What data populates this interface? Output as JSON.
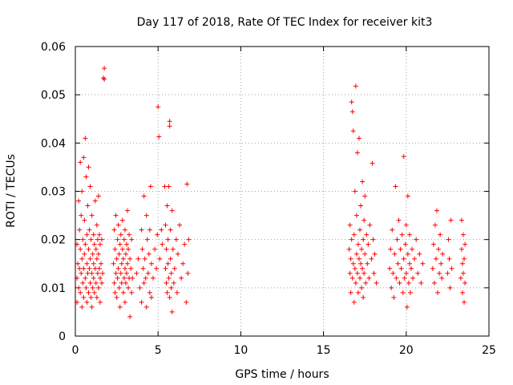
{
  "chart_data": {
    "type": "scatter",
    "title": "Day 117 of 2018, Rate Of TEC Index for receiver kit3",
    "xlabel": "GPS time / hours",
    "ylabel": "ROTI / TECUs",
    "xlim": [
      0,
      25
    ],
    "ylim": [
      0,
      0.06
    ],
    "xticks": [
      0,
      5,
      10,
      15,
      20,
      25
    ],
    "xtick_labels": [
      "0",
      "5",
      "10",
      "15",
      "20",
      "25"
    ],
    "yticks": [
      0,
      0.01,
      0.02,
      0.03,
      0.04,
      0.05,
      0.06
    ],
    "ytick_labels": [
      "0",
      "0.01",
      "0.02",
      "0.03",
      "0.04",
      "0.05",
      "0.06"
    ],
    "grid": true,
    "marker": "+",
    "color": "#ff0000",
    "series": [
      {
        "name": "ROTI",
        "points": [
          [
            0.1,
            0.012
          ],
          [
            0.1,
            0.019
          ],
          [
            0.1,
            0.007
          ],
          [
            0.15,
            0.015
          ],
          [
            0.2,
            0.028
          ],
          [
            0.2,
            0.01
          ],
          [
            0.25,
            0.022
          ],
          [
            0.25,
            0.014
          ],
          [
            0.3,
            0.009
          ],
          [
            0.3,
            0.018
          ],
          [
            0.3,
            0.036
          ],
          [
            0.35,
            0.013
          ],
          [
            0.35,
            0.025
          ],
          [
            0.4,
            0.006
          ],
          [
            0.4,
            0.016
          ],
          [
            0.4,
            0.03
          ],
          [
            0.45,
            0.011
          ],
          [
            0.45,
            0.02
          ],
          [
            0.5,
            0.008
          ],
          [
            0.5,
            0.014
          ],
          [
            0.5,
            0.037
          ],
          [
            0.55,
            0.017
          ],
          [
            0.55,
            0.024
          ],
          [
            0.6,
            0.012
          ],
          [
            0.6,
            0.019
          ],
          [
            0.6,
            0.041
          ],
          [
            0.65,
            0.01
          ],
          [
            0.65,
            0.033
          ],
          [
            0.7,
            0.015
          ],
          [
            0.7,
            0.021
          ],
          [
            0.7,
            0.007
          ],
          [
            0.75,
            0.013
          ],
          [
            0.75,
            0.027
          ],
          [
            0.8,
            0.009
          ],
          [
            0.8,
            0.018
          ],
          [
            0.8,
            0.035
          ],
          [
            0.85,
            0.014
          ],
          [
            0.85,
            0.022
          ],
          [
            0.9,
            0.011
          ],
          [
            0.9,
            0.016
          ],
          [
            0.9,
            0.031
          ],
          [
            0.95,
            0.008
          ],
          [
            0.95,
            0.02
          ],
          [
            1.0,
            0.013
          ],
          [
            1.0,
            0.025
          ],
          [
            1.0,
            0.006
          ],
          [
            1.05,
            0.017
          ],
          [
            1.05,
            0.01
          ],
          [
            1.1,
            0.015
          ],
          [
            1.1,
            0.021
          ],
          [
            1.1,
            0.012
          ],
          [
            1.15,
            0.019
          ],
          [
            1.15,
            0.009
          ],
          [
            1.2,
            0.014
          ],
          [
            1.2,
            0.028
          ],
          [
            1.25,
            0.011
          ],
          [
            1.25,
            0.018
          ],
          [
            1.3,
            0.016
          ],
          [
            1.3,
            0.023
          ],
          [
            1.3,
            0.008
          ],
          [
            1.35,
            0.013
          ],
          [
            1.35,
            0.02
          ],
          [
            1.4,
            0.01
          ],
          [
            1.4,
            0.017
          ],
          [
            1.4,
            0.029
          ],
          [
            1.45,
            0.014
          ],
          [
            1.45,
            0.021
          ],
          [
            1.5,
            0.012
          ],
          [
            1.5,
            0.019
          ],
          [
            1.5,
            0.007
          ],
          [
            1.55,
            0.015
          ],
          [
            1.6,
            0.011
          ],
          [
            1.6,
            0.02
          ],
          [
            1.65,
            0.013
          ],
          [
            1.7,
            0.0535
          ],
          [
            1.75,
            0.0555
          ],
          [
            1.75,
            0.0532
          ],
          [
            2.3,
            0.015
          ],
          [
            2.35,
            0.011
          ],
          [
            2.35,
            0.022
          ],
          [
            2.4,
            0.018
          ],
          [
            2.4,
            0.009
          ],
          [
            2.45,
            0.013
          ],
          [
            2.45,
            0.025
          ],
          [
            2.5,
            0.016
          ],
          [
            2.5,
            0.008
          ],
          [
            2.55,
            0.02
          ],
          [
            2.55,
            0.012
          ],
          [
            2.6,
            0.014
          ],
          [
            2.6,
            0.023
          ],
          [
            2.65,
            0.01
          ],
          [
            2.65,
            0.017
          ],
          [
            2.7,
            0.019
          ],
          [
            2.7,
            0.006
          ],
          [
            2.75,
            0.013
          ],
          [
            2.75,
            0.021
          ],
          [
            2.8,
            0.015
          ],
          [
            2.8,
            0.011
          ],
          [
            2.85,
            0.024
          ],
          [
            2.85,
            0.018
          ],
          [
            2.9,
            0.009
          ],
          [
            2.9,
            0.016
          ],
          [
            2.95,
            0.012
          ],
          [
            2.95,
            0.02
          ],
          [
            3.0,
            0.014
          ],
          [
            3.0,
            0.022
          ],
          [
            3.0,
            0.007
          ],
          [
            3.05,
            0.017
          ],
          [
            3.05,
            0.011
          ],
          [
            3.1,
            0.019
          ],
          [
            3.1,
            0.013
          ],
          [
            3.15,
            0.015
          ],
          [
            3.15,
            0.026
          ],
          [
            3.2,
            0.01
          ],
          [
            3.2,
            0.018
          ],
          [
            3.25,
            0.012
          ],
          [
            3.25,
            0.021
          ],
          [
            3.3,
            0.016
          ],
          [
            3.3,
            0.004
          ],
          [
            3.35,
            0.014
          ],
          [
            3.4,
            0.02
          ],
          [
            3.4,
            0.009
          ],
          [
            3.45,
            0.012
          ],
          [
            3.7,
            0.013
          ],
          [
            3.8,
            0.016
          ],
          [
            3.9,
            0.01
          ],
          [
            4.0,
            0.022
          ],
          [
            4.0,
            0.007
          ],
          [
            4.05,
            0.018
          ],
          [
            4.1,
            0.014
          ],
          [
            4.15,
            0.029
          ],
          [
            4.15,
            0.011
          ],
          [
            4.2,
            0.016
          ],
          [
            4.25,
            0.012
          ],
          [
            4.3,
            0.025
          ],
          [
            4.3,
            0.006
          ],
          [
            4.35,
            0.02
          ],
          [
            4.4,
            0.013
          ],
          [
            4.45,
            0.017
          ],
          [
            4.5,
            0.009
          ],
          [
            4.5,
            0.022
          ],
          [
            4.55,
            0.031
          ],
          [
            4.6,
            0.015
          ],
          [
            4.6,
            0.008
          ],
          [
            4.7,
            0.012
          ],
          [
            4.8,
            0.018
          ],
          [
            4.9,
            0.014
          ],
          [
            4.95,
            0.021
          ],
          [
            5.0,
            0.0475
          ],
          [
            5.05,
            0.0413
          ],
          [
            5.1,
            0.016
          ],
          [
            5.2,
            0.022
          ],
          [
            5.25,
            0.019
          ],
          [
            5.4,
            0.031
          ],
          [
            5.45,
            0.014
          ],
          [
            5.45,
            0.023
          ],
          [
            5.5,
            0.011
          ],
          [
            5.5,
            0.018
          ],
          [
            5.55,
            0.027
          ],
          [
            5.55,
            0.009
          ],
          [
            5.6,
            0.015
          ],
          [
            5.6,
            0.02
          ],
          [
            5.65,
            0.012
          ],
          [
            5.65,
            0.031
          ],
          [
            5.7,
            0.008
          ],
          [
            5.7,
            0.0435
          ],
          [
            5.7,
            0.0445
          ],
          [
            5.75,
            0.016
          ],
          [
            5.75,
            0.022
          ],
          [
            5.8,
            0.01
          ],
          [
            5.8,
            0.013
          ],
          [
            5.85,
            0.026
          ],
          [
            5.85,
            0.005
          ],
          [
            5.9,
            0.018
          ],
          [
            5.95,
            0.011
          ],
          [
            6.0,
            0.014
          ],
          [
            6.1,
            0.02
          ],
          [
            6.15,
            0.009
          ],
          [
            6.2,
            0.017
          ],
          [
            6.3,
            0.023
          ],
          [
            6.4,
            0.012
          ],
          [
            6.5,
            0.015
          ],
          [
            6.6,
            0.019
          ],
          [
            6.7,
            0.007
          ],
          [
            6.75,
            0.0315
          ],
          [
            6.8,
            0.013
          ],
          [
            6.85,
            0.02
          ],
          [
            16.55,
            0.018
          ],
          [
            16.6,
            0.013
          ],
          [
            16.6,
            0.023
          ],
          [
            16.65,
            0.009
          ],
          [
            16.65,
            0.016
          ],
          [
            16.7,
            0.0485
          ],
          [
            16.7,
            0.02
          ],
          [
            16.75,
            0.012
          ],
          [
            16.75,
            0.0465
          ],
          [
            16.8,
            0.015
          ],
          [
            16.8,
            0.0425
          ],
          [
            16.85,
            0.007
          ],
          [
            16.85,
            0.021
          ],
          [
            16.9,
            0.014
          ],
          [
            16.9,
            0.03
          ],
          [
            16.95,
            0.011
          ],
          [
            16.95,
            0.0518
          ],
          [
            17.0,
            0.017
          ],
          [
            17.0,
            0.025
          ],
          [
            17.05,
            0.013
          ],
          [
            17.05,
            0.038
          ],
          [
            17.1,
            0.019
          ],
          [
            17.1,
            0.009
          ],
          [
            17.15,
            0.016
          ],
          [
            17.15,
            0.041
          ],
          [
            17.2,
            0.022
          ],
          [
            17.2,
            0.012
          ],
          [
            17.25,
            0.027
          ],
          [
            17.25,
            0.015
          ],
          [
            17.3,
            0.01
          ],
          [
            17.3,
            0.018
          ],
          [
            17.35,
            0.014
          ],
          [
            17.35,
            0.032
          ],
          [
            17.4,
            0.02
          ],
          [
            17.4,
            0.008
          ],
          [
            17.45,
            0.024
          ],
          [
            17.45,
            0.013
          ],
          [
            17.5,
            0.017
          ],
          [
            17.5,
            0.029
          ],
          [
            17.55,
            0.011
          ],
          [
            17.6,
            0.021
          ],
          [
            17.65,
            0.015
          ],
          [
            17.7,
            0.019
          ],
          [
            17.75,
            0.012
          ],
          [
            17.8,
            0.023
          ],
          [
            17.9,
            0.016
          ],
          [
            17.95,
            0.0358
          ],
          [
            18.0,
            0.02
          ],
          [
            18.05,
            0.013
          ],
          [
            18.1,
            0.017
          ],
          [
            18.2,
            0.011
          ],
          [
            19.0,
            0.014
          ],
          [
            19.05,
            0.018
          ],
          [
            19.1,
            0.01
          ],
          [
            19.15,
            0.022
          ],
          [
            19.2,
            0.013
          ],
          [
            19.25,
            0.008
          ],
          [
            19.3,
            0.017
          ],
          [
            19.35,
            0.031
          ],
          [
            19.4,
            0.012
          ],
          [
            19.45,
            0.02
          ],
          [
            19.5,
            0.015
          ],
          [
            19.55,
            0.024
          ],
          [
            19.6,
            0.011
          ],
          [
            19.65,
            0.018
          ],
          [
            19.7,
            0.014
          ],
          [
            19.75,
            0.021
          ],
          [
            19.8,
            0.009
          ],
          [
            19.85,
            0.0372
          ],
          [
            19.85,
            0.016
          ],
          [
            19.9,
            0.012
          ],
          [
            19.95,
            0.019
          ],
          [
            20.0,
            0.013
          ],
          [
            20.0,
            0.023
          ],
          [
            20.05,
            0.006
          ],
          [
            20.1,
            0.017
          ],
          [
            20.1,
            0.029
          ],
          [
            20.15,
            0.011
          ],
          [
            20.2,
            0.015
          ],
          [
            20.2,
            0.021
          ],
          [
            20.25,
            0.009
          ],
          [
            20.3,
            0.014
          ],
          [
            20.35,
            0.018
          ],
          [
            20.4,
            0.012
          ],
          [
            20.5,
            0.016
          ],
          [
            20.6,
            0.02
          ],
          [
            20.7,
            0.013
          ],
          [
            20.8,
            0.017
          ],
          [
            20.9,
            0.011
          ],
          [
            21.0,
            0.015
          ],
          [
            21.6,
            0.014
          ],
          [
            21.65,
            0.019
          ],
          [
            21.7,
            0.011
          ],
          [
            21.75,
            0.023
          ],
          [
            21.8,
            0.016
          ],
          [
            21.85,
            0.026
          ],
          [
            21.9,
            0.009
          ],
          [
            21.95,
            0.018
          ],
          [
            22.0,
            0.013
          ],
          [
            22.05,
            0.021
          ],
          [
            22.1,
            0.015
          ],
          [
            22.15,
            0.012
          ],
          [
            22.2,
            0.017
          ],
          [
            22.5,
            0.013
          ],
          [
            22.55,
            0.02
          ],
          [
            22.6,
            0.016
          ],
          [
            22.65,
            0.01
          ],
          [
            22.7,
            0.024
          ],
          [
            22.75,
            0.014
          ],
          [
            23.3,
            0.012
          ],
          [
            23.35,
            0.018
          ],
          [
            23.35,
            0.024
          ],
          [
            23.4,
            0.009
          ],
          [
            23.4,
            0.015
          ],
          [
            23.45,
            0.021
          ],
          [
            23.45,
            0.013
          ],
          [
            23.5,
            0.007
          ],
          [
            23.5,
            0.016
          ],
          [
            23.55,
            0.011
          ],
          [
            23.55,
            0.019
          ]
        ]
      }
    ]
  }
}
